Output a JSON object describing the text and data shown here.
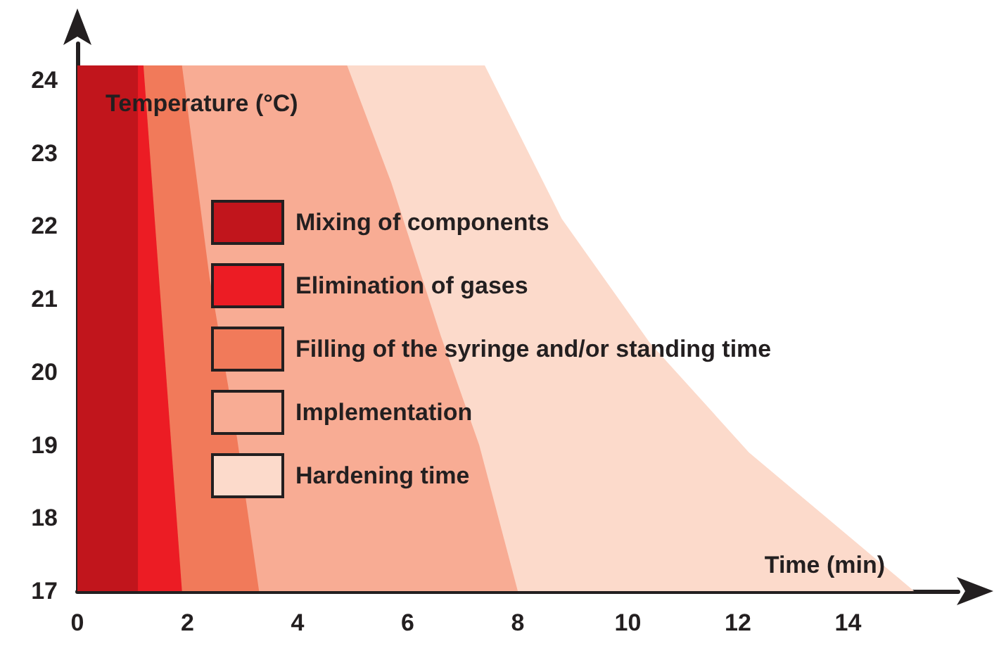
{
  "chart_data": {
    "type": "area",
    "xlabel": "Time (min)",
    "ylabel": "Temperature (°C)",
    "series": [
      {
        "name": "Mixing of components",
        "color": "#c1151c",
        "x": [
          0,
          1.1,
          1.1
        ],
        "values": [
          24.2,
          24.2,
          17
        ]
      },
      {
        "name": "Elimination of gases",
        "color": "#ec1c24",
        "x": [
          0,
          1.2,
          1.9
        ],
        "values": [
          24.2,
          24.2,
          17
        ]
      },
      {
        "name": "Filling of the syringe and/or standing time",
        "color": "#f17a5a",
        "x": [
          0,
          1.9,
          2.4,
          2.9,
          3.3
        ],
        "values": [
          24.2,
          24.2,
          21.3,
          19.1,
          17
        ]
      },
      {
        "name": "Implementation",
        "color": "#f8ac94",
        "x": [
          0,
          4.9,
          5.7,
          6.6,
          7.3,
          8.0
        ],
        "values": [
          24.2,
          24.2,
          22.6,
          20.5,
          19,
          17
        ]
      },
      {
        "name": "Hardening time",
        "color": "#fcdacb",
        "x": [
          0,
          7.4,
          8.8,
          10.4,
          12.2,
          15.2
        ],
        "values": [
          24.2,
          24.2,
          22.1,
          20.4,
          18.9,
          17
        ]
      }
    ],
    "xlim": [
      0,
      16
    ],
    "xticks": [
      0,
      2,
      4,
      6,
      8,
      10,
      12,
      14
    ],
    "ylim": [
      17,
      24.5
    ],
    "yticks": [
      17,
      18,
      19,
      20,
      21,
      22,
      23,
      24
    ],
    "grid": false,
    "legend": "left",
    "marker": "none"
  }
}
